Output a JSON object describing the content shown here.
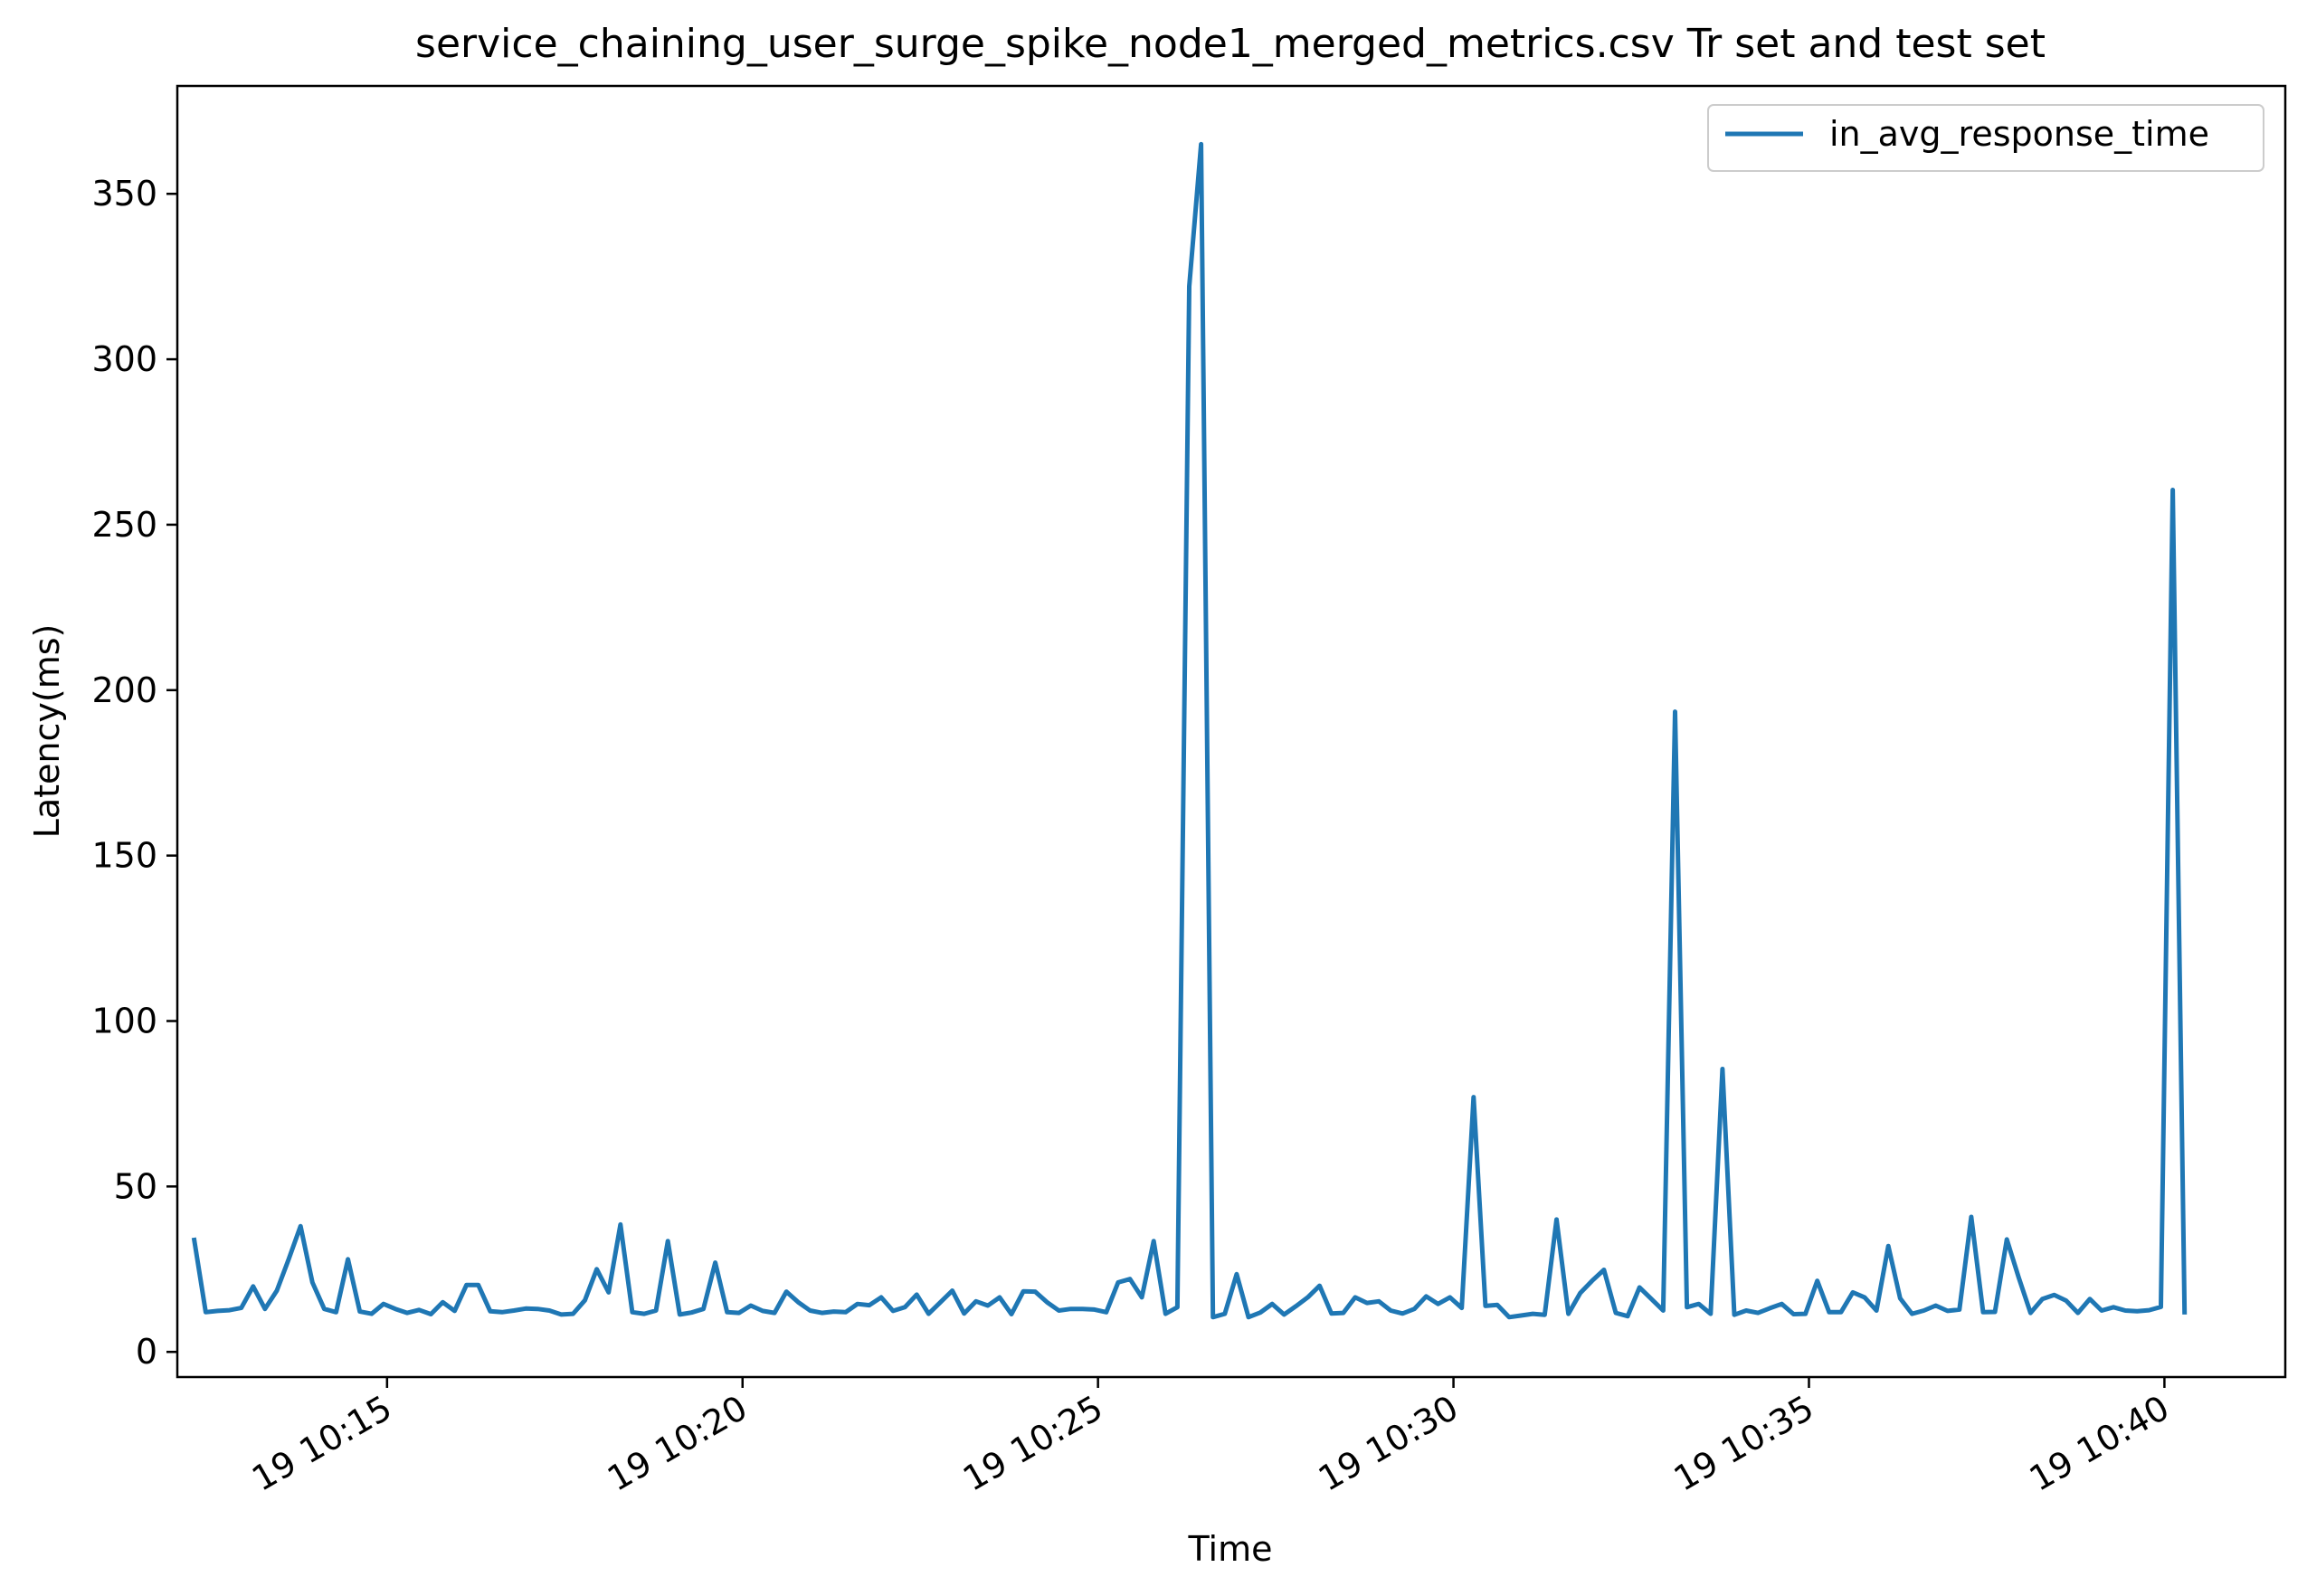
{
  "chart_data": {
    "type": "line",
    "title": "service_chaining_user_surge_spike_node1_merged_metrics.csv Tr set and test set",
    "xlabel": "Time",
    "ylabel": "Latency(ms)",
    "x_start": "19 10:12:17",
    "x_step_seconds": 10,
    "xlim": [
      "19 10:12:03",
      "19 10:41:42"
    ],
    "ylim": [
      -7.6,
      382.6
    ],
    "x_ticks": [
      "19 10:15",
      "19 10:20",
      "19 10:25",
      "19 10:30",
      "19 10:35",
      "19 10:40"
    ],
    "y_ticks": [
      0,
      50,
      100,
      150,
      200,
      250,
      300,
      350
    ],
    "legend": {
      "position": "top-right"
    },
    "grid": false,
    "series": [
      {
        "name": "in_avg_response_time",
        "color": "#1f77b4",
        "values": [
          34.5,
          12.0,
          12.4,
          12.6,
          13.3,
          19.8,
          13.0,
          18.5,
          28.0,
          38.0,
          21.0,
          13.0,
          12.0,
          28.0,
          12.2,
          11.5,
          14.5,
          13.0,
          11.8,
          12.7,
          11.4,
          15.0,
          12.4,
          20.2,
          20.2,
          12.3,
          12.0,
          12.5,
          13.1,
          13.0,
          12.5,
          11.3,
          11.5,
          15.6,
          25.0,
          18.0,
          38.5,
          12.0,
          11.5,
          12.5,
          33.5,
          11.3,
          11.9,
          13.0,
          27.0,
          12.0,
          11.8,
          14.0,
          12.4,
          11.8,
          18.2,
          15.0,
          12.5,
          11.8,
          12.2,
          12.0,
          14.5,
          14.1,
          16.5,
          12.4,
          13.5,
          17.3,
          11.5,
          15.0,
          18.5,
          11.6,
          15.3,
          14.0,
          16.5,
          11.4,
          18.3,
          18.2,
          15.0,
          12.5,
          13.0,
          13.0,
          12.8,
          12.0,
          21.0,
          22.0,
          16.5,
          33.5,
          11.5,
          13.5,
          322.0,
          365.0,
          10.5,
          11.5,
          23.5,
          10.5,
          11.9,
          14.5,
          11.3,
          13.8,
          16.5,
          20.0,
          11.6,
          11.8,
          16.5,
          14.8,
          15.3,
          12.5,
          11.6,
          13.0,
          16.8,
          14.5,
          16.5,
          13.3,
          77.0,
          13.9,
          14.2,
          10.5,
          11.0,
          11.5,
          11.2,
          40.0,
          11.5,
          17.8,
          21.5,
          24.8,
          11.8,
          10.8,
          19.5,
          16.0,
          12.5,
          193.5,
          13.5,
          14.5,
          11.5,
          85.5,
          11.2,
          12.5,
          11.8,
          13.2,
          14.5,
          11.4,
          11.5,
          21.5,
          12.0,
          12.0,
          18.0,
          16.5,
          12.5,
          32.0,
          16.2,
          11.5,
          12.5,
          14.0,
          12.4,
          12.8,
          40.8,
          12.0,
          12.1,
          34.0,
          22.5,
          11.8,
          16.0,
          17.2,
          15.5,
          11.8,
          16.0,
          12.5,
          13.5,
          12.5,
          12.3,
          12.6,
          13.6,
          260.5,
          11.3
        ]
      }
    ]
  }
}
